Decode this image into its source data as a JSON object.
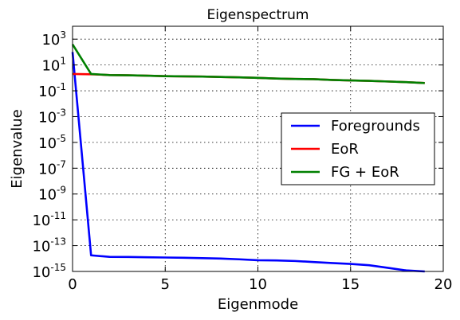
{
  "chart_data": {
    "type": "line",
    "title": "Eigenspectrum",
    "xlabel": "Eigenmode",
    "ylabel": "Eigenvalue",
    "xlim": [
      0,
      20
    ],
    "ylim_log10": [
      -15,
      4
    ],
    "y_scale": "log",
    "grid": true,
    "legend_position": "center-right",
    "x_ticks": [
      0,
      5,
      10,
      15,
      20
    ],
    "y_ticks": [
      {
        "base": "10",
        "exp": "3",
        "value_log10": 3
      },
      {
        "base": "10",
        "exp": "1",
        "value_log10": 1
      },
      {
        "base": "10",
        "exp": "-1",
        "value_log10": -1
      },
      {
        "base": "10",
        "exp": "-3",
        "value_log10": -3
      },
      {
        "base": "10",
        "exp": "-5",
        "value_log10": -5
      },
      {
        "base": "10",
        "exp": "-7",
        "value_log10": -7
      },
      {
        "base": "10",
        "exp": "-9",
        "value_log10": -9
      },
      {
        "base": "10",
        "exp": "-11",
        "value_log10": -11
      },
      {
        "base": "10",
        "exp": "-13",
        "value_log10": -13
      },
      {
        "base": "10",
        "exp": "-15",
        "value_log10": -15
      }
    ],
    "x": [
      0,
      1,
      2,
      3,
      4,
      5,
      6,
      7,
      8,
      9,
      10,
      11,
      12,
      13,
      14,
      15,
      16,
      17,
      18,
      19
    ],
    "series": [
      {
        "name": "Foregrounds",
        "color": "#0000ff",
        "log10_values": [
          2.0,
          -13.75,
          -13.87,
          -13.88,
          -13.9,
          -13.92,
          -13.94,
          -13.97,
          -14.0,
          -14.06,
          -14.13,
          -14.15,
          -14.19,
          -14.27,
          -14.35,
          -14.42,
          -14.52,
          -14.72,
          -14.92,
          -15.0
        ]
      },
      {
        "name": "EoR",
        "color": "#ff0000",
        "log10_values": [
          0.3,
          0.28,
          0.22,
          0.2,
          0.17,
          0.13,
          0.12,
          0.1,
          0.07,
          0.04,
          0.0,
          -0.05,
          -0.08,
          -0.1,
          -0.16,
          -0.2,
          -0.23,
          -0.28,
          -0.33,
          -0.4
        ]
      },
      {
        "name": "FG + EoR",
        "color": "#008000",
        "log10_values": [
          2.6,
          0.3,
          0.22,
          0.2,
          0.17,
          0.13,
          0.12,
          0.1,
          0.07,
          0.04,
          0.0,
          -0.05,
          -0.08,
          -0.1,
          -0.16,
          -0.2,
          -0.23,
          -0.28,
          -0.33,
          -0.4
        ]
      }
    ]
  }
}
